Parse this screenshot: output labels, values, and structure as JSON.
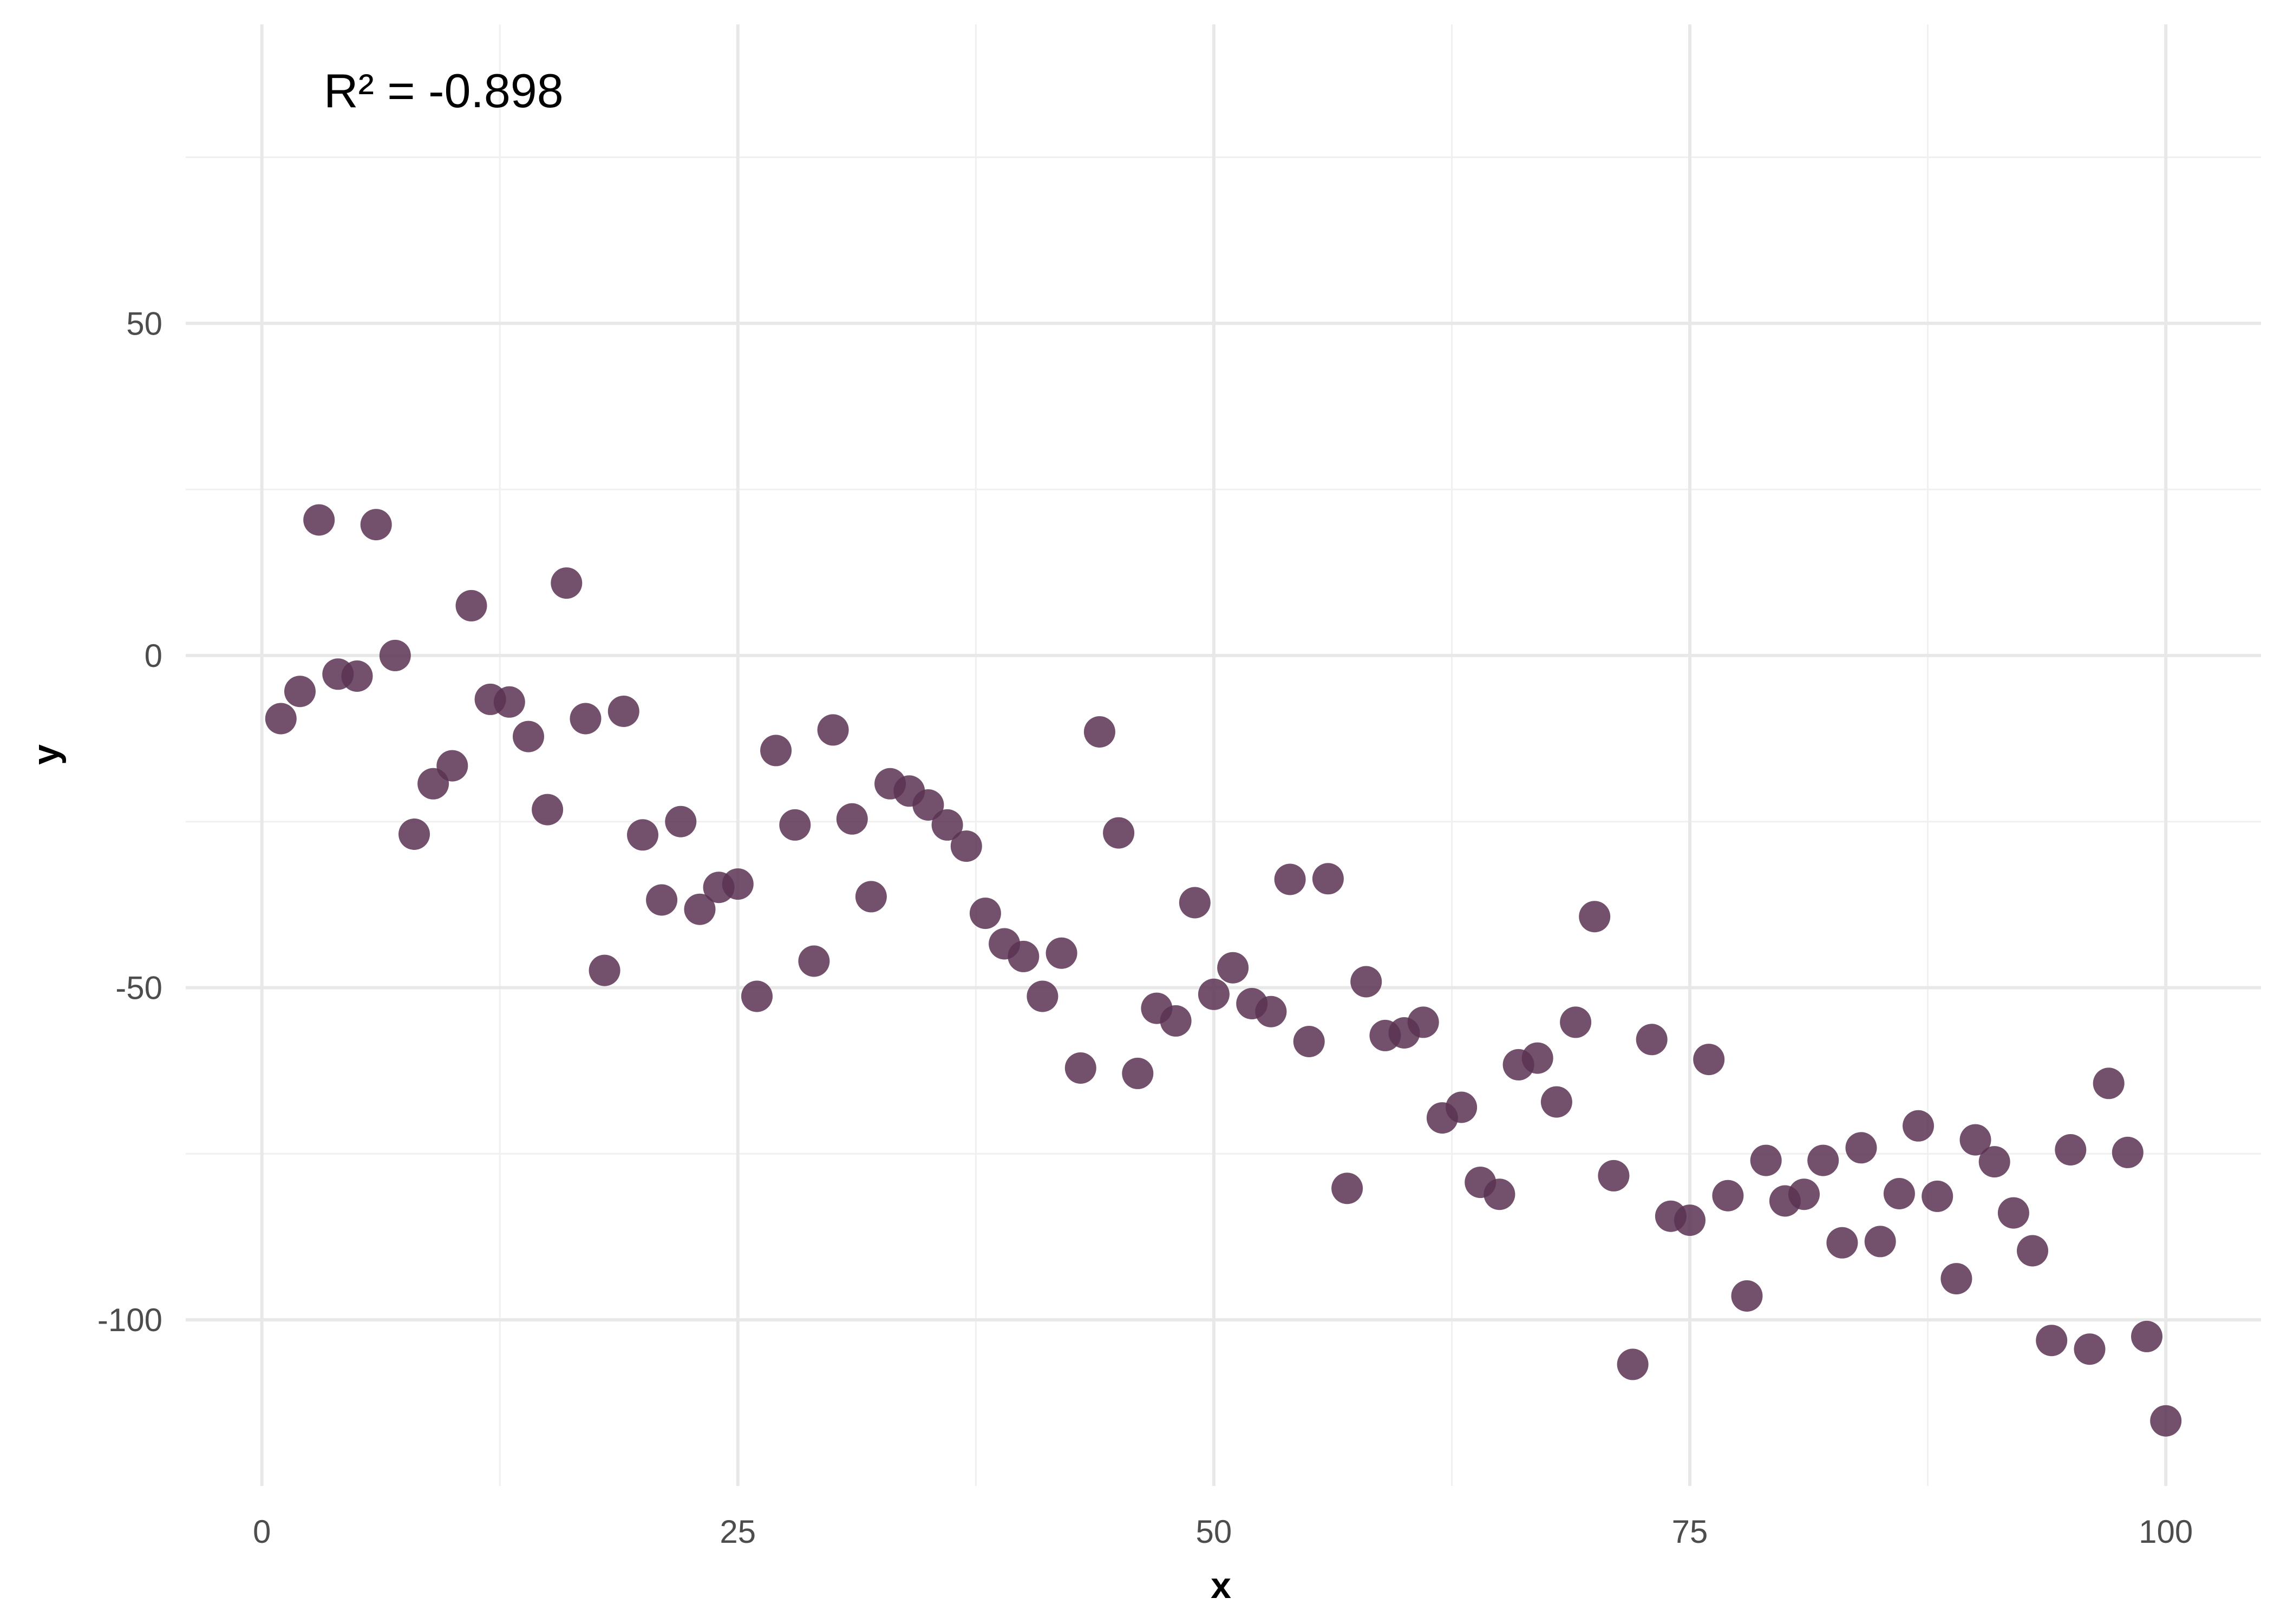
{
  "chart_data": {
    "type": "scatter",
    "title": "",
    "xlabel": "x",
    "ylabel": "y",
    "annotation": "R² = -0.898",
    "xlim": [
      -4,
      105
    ],
    "ylim": [
      -125,
      95
    ],
    "x_ticks": [
      0,
      25,
      50,
      75,
      100
    ],
    "x_tick_labels": [
      "0",
      "25",
      "50",
      "75",
      "100"
    ],
    "y_ticks": [
      -100,
      -50,
      0,
      50
    ],
    "y_tick_labels": [
      "-100",
      "-50",
      "0",
      "50"
    ],
    "x_minor_ticks": [
      12.5,
      37.5,
      62.5,
      87.5
    ],
    "y_minor_ticks": [
      -75,
      -25,
      25,
      75
    ],
    "grid": true,
    "legend": "none",
    "point_color": "#5b3152",
    "x": [
      1,
      2,
      3,
      4,
      5,
      6,
      7,
      8,
      9,
      10,
      11,
      12,
      13,
      14,
      15,
      16,
      17,
      18,
      19,
      20,
      21,
      22,
      23,
      24,
      25,
      26,
      27,
      28,
      29,
      30,
      31,
      32,
      33,
      34,
      35,
      36,
      37,
      38,
      39,
      40,
      41,
      42,
      43,
      44,
      45,
      46,
      47,
      48,
      49,
      50,
      51,
      52,
      53,
      54,
      55,
      56,
      57,
      58,
      59,
      60,
      61,
      62,
      63,
      64,
      65,
      66,
      67,
      68,
      69,
      70,
      71,
      72,
      73,
      74,
      75,
      76,
      77,
      78,
      79,
      80,
      81,
      82,
      83,
      84,
      85,
      86,
      87,
      88,
      89,
      90,
      91,
      92,
      93,
      94,
      95,
      96,
      97,
      98,
      99,
      100
    ],
    "y": [
      -9.5,
      -5.4,
      20.4,
      -2.8,
      -3.1,
      19.7,
      0,
      -26.9,
      -19.3,
      -16.6,
      7.5,
      -6.6,
      -7,
      -12.2,
      -23.2,
      10.9,
      -9.5,
      -47.4,
      -8.4,
      -27,
      -36.8,
      -25,
      -38.2,
      -34.9,
      -34.4,
      -51.3,
      -14.3,
      -25.5,
      -46,
      -11.2,
      -24.6,
      -36.3,
      -19.3,
      -20.4,
      -22.5,
      -25.5,
      -28.7,
      -38.8,
      -43.4,
      -45.3,
      -51.3,
      -44.8,
      -62.1,
      -11.5,
      -26.7,
      -62.9,
      -53.1,
      -55,
      -37.2,
      -51,
      -47,
      -52.4,
      -53.6,
      -33.7,
      -58.1,
      -33.6,
      -80.2,
      -49.1,
      -57.2,
      -56.8,
      -55.2,
      -69.6,
      -68,
      -79.3,
      -81.1,
      -61.6,
      -60.6,
      -67.2,
      -55.2,
      -39.3,
      -78.3,
      -106.7,
      -57.8,
      -84.4,
      -85,
      -60.8,
      -81.3,
      -96.4,
      -76,
      -82.1,
      -81.1,
      -76,
      -88.4,
      -74.1,
      -88.2,
      -81,
      -70.8,
      -81.4,
      -93.8,
      -72.9,
      -76.2,
      -83.9,
      -89.6,
      -103.1,
      -74.4,
      -104.4,
      -64.4,
      -74.8,
      -102.5,
      -115.2
    ]
  }
}
